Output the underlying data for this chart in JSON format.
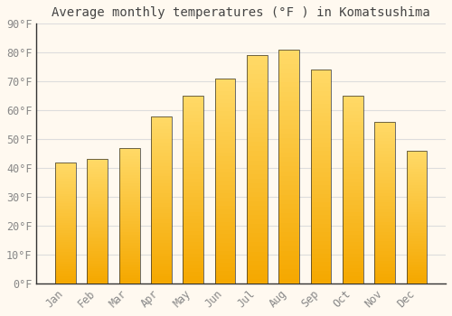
{
  "title": "Average monthly temperatures (°F ) in Komatsushima",
  "months": [
    "Jan",
    "Feb",
    "Mar",
    "Apr",
    "May",
    "Jun",
    "Jul",
    "Aug",
    "Sep",
    "Oct",
    "Nov",
    "Dec"
  ],
  "values": [
    42,
    43,
    47,
    58,
    65,
    71,
    79,
    81,
    74,
    65,
    56,
    46
  ],
  "bar_color_bottom": "#F5A800",
  "bar_color_top": "#FFD966",
  "bar_edge_color": "#333333",
  "background_color": "#FFF9F0",
  "grid_color": "#DDDDDD",
  "ylim": [
    0,
    90
  ],
  "yticks": [
    0,
    10,
    20,
    30,
    40,
    50,
    60,
    70,
    80,
    90
  ],
  "ytick_labels": [
    "0°F",
    "10°F",
    "20°F",
    "30°F",
    "40°F",
    "50°F",
    "60°F",
    "70°F",
    "80°F",
    "90°F"
  ],
  "title_fontsize": 10,
  "tick_fontsize": 8.5,
  "tick_color": "#888888",
  "title_color": "#444444",
  "spine_color": "#333333",
  "bar_width": 0.65,
  "n_gradient_steps": 50
}
